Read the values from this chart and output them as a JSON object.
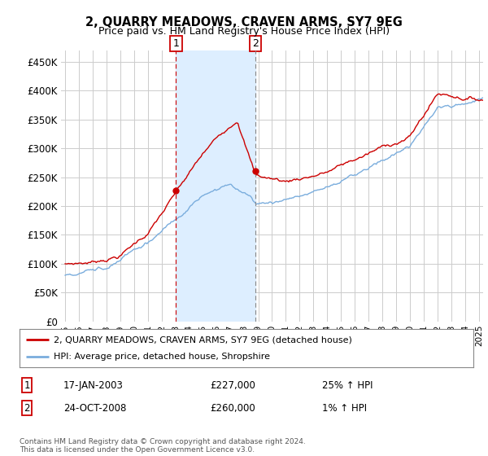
{
  "title": "2, QUARRY MEADOWS, CRAVEN ARMS, SY7 9EG",
  "subtitle": "Price paid vs. HM Land Registry's House Price Index (HPI)",
  "ylabel_ticks": [
    "£0",
    "£50K",
    "£100K",
    "£150K",
    "£200K",
    "£250K",
    "£300K",
    "£350K",
    "£400K",
    "£450K"
  ],
  "ytick_vals": [
    0,
    50000,
    100000,
    150000,
    200000,
    250000,
    300000,
    350000,
    400000,
    450000
  ],
  "ylim": [
    0,
    470000
  ],
  "xlim_start": 1994.7,
  "xlim_end": 2025.3,
  "sale1_x": 2003.04,
  "sale1_y": 227000,
  "sale2_x": 2008.81,
  "sale2_y": 260000,
  "sale1_label": "17-JAN-2003",
  "sale1_price": "£227,000",
  "sale1_hpi": "25% ↑ HPI",
  "sale2_label": "24-OCT-2008",
  "sale2_price": "£260,000",
  "sale2_hpi": "1% ↑ HPI",
  "legend_line1": "2, QUARRY MEADOWS, CRAVEN ARMS, SY7 9EG (detached house)",
  "legend_line2": "HPI: Average price, detached house, Shropshire",
  "footer": "Contains HM Land Registry data © Crown copyright and database right 2024.\nThis data is licensed under the Open Government Licence v3.0.",
  "line_color_red": "#cc0000",
  "line_color_blue": "#7aaddd",
  "shade_color": "#ddeeff",
  "grid_color": "#cccccc",
  "background_color": "#ffffff"
}
